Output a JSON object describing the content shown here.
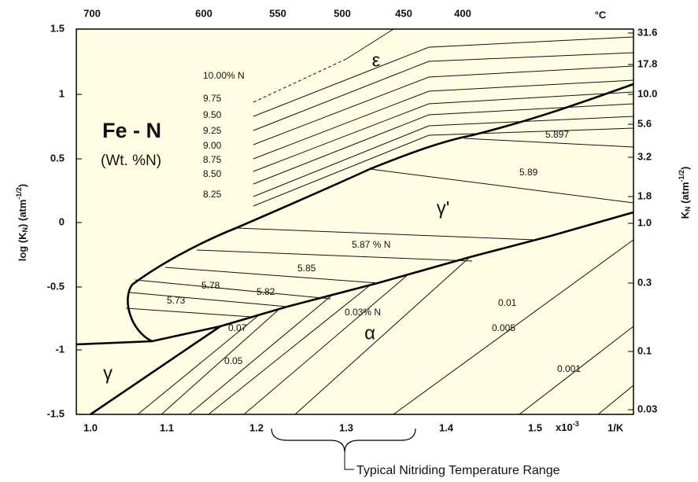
{
  "title": "Fe - N",
  "subtitle": "(Wt. %N)",
  "y_axis_left": {
    "pre": "log (K",
    "sub": "N",
    "mid": ") (atm",
    "sup": "-1/2",
    "post": ")",
    "ticks": [
      "1.5",
      "1",
      "0.5",
      "0",
      "-0.5",
      "-1",
      "-1.5"
    ]
  },
  "y_axis_right": {
    "pre": "K",
    "sub": "N",
    "mid": " (atm",
    "sup": "-1/2",
    "post": ")",
    "ticks": [
      "31.6",
      "17.8",
      "10.0",
      "5.6",
      "3.2",
      "1.8",
      "1.0",
      "0.3",
      "0.1",
      "0.03"
    ]
  },
  "x_axis_bottom": {
    "ticks": [
      "1.0",
      "1.1",
      "1.2",
      "1.3",
      "1.4",
      "1.5"
    ],
    "multiplier": "x10",
    "multiplier_exp": "-3",
    "unit": "1/K"
  },
  "x_axis_top": {
    "ticks": [
      "700",
      "600",
      "550",
      "500",
      "450",
      "400"
    ],
    "unit": "°C"
  },
  "phases": [
    "ε",
    "γ'",
    "α",
    "γ"
  ],
  "iso_labels": [
    "10.00% N",
    "9.75",
    "9.50",
    "9.25",
    "9.00",
    "8.75",
    "8.50",
    "8.25",
    "5.897",
    "5.89",
    "5.87 % N",
    "5.85",
    "5.82",
    "5.78",
    "5.73",
    "0.07",
    "0.05",
    "0.03% N",
    "0.01",
    "0.005",
    "0.001"
  ],
  "range_note": "Typical Nitriding Temperature Range"
}
